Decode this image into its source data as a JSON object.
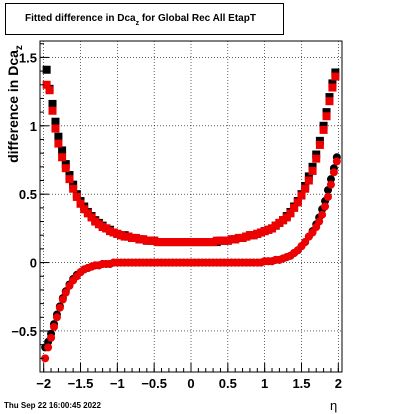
{
  "title": {
    "main": "Fitted difference in Dca",
    "sub": "z",
    "rest": " for Global Rec All EtapT"
  },
  "ylabel": {
    "main": "difference in Dca",
    "sub": "z"
  },
  "xlabel": "η",
  "timestamp": "Thu Sep 22 16:00:45 2022",
  "chart_data": {
    "type": "scatter",
    "xlim": [
      -2.05,
      2.05
    ],
    "ylim": [
      -0.8,
      1.62
    ],
    "grid": true,
    "xticks": [
      {
        "v": -2,
        "label": "−2"
      },
      {
        "v": -1.5,
        "label": "−1.5"
      },
      {
        "v": -1,
        "label": "−1"
      },
      {
        "v": -0.5,
        "label": "−0.5"
      },
      {
        "v": 0,
        "label": "0"
      },
      {
        "v": 0.5,
        "label": "0.5"
      },
      {
        "v": 1,
        "label": "1"
      },
      {
        "v": 1.5,
        "label": "1.5"
      },
      {
        "v": 2,
        "label": "2"
      }
    ],
    "yticks": [
      {
        "v": -0.5,
        "label": "−0.5"
      },
      {
        "v": 0,
        "label": "0"
      },
      {
        "v": 0.5,
        "label": "0.5"
      },
      {
        "v": 1,
        "label": "1"
      },
      {
        "v": 1.5,
        "label": "1.5"
      }
    ],
    "series": [
      {
        "marker": "square",
        "color": "#000000",
        "x": [
          -1.96,
          -1.92,
          -1.88,
          -1.84,
          -1.8,
          -1.75,
          -1.7,
          -1.65,
          -1.6,
          -1.55,
          -1.5,
          -1.45,
          -1.4,
          -1.35,
          -1.3,
          -1.25,
          -1.2,
          -1.15,
          -1.1,
          -1.05,
          -1.0,
          -0.95,
          -0.9,
          -0.85,
          -0.8,
          -0.75,
          -0.7,
          -0.65,
          -0.6,
          -0.55,
          -0.5,
          -0.45,
          -0.4,
          -0.35,
          -0.3,
          -0.25,
          -0.2,
          -0.15,
          -0.1,
          -0.05,
          0.0,
          0.05,
          0.1,
          0.15,
          0.2,
          0.25,
          0.3,
          0.35,
          0.4,
          0.45,
          0.5,
          0.55,
          0.6,
          0.65,
          0.7,
          0.75,
          0.8,
          0.85,
          0.9,
          0.95,
          1.0,
          1.05,
          1.1,
          1.15,
          1.2,
          1.25,
          1.3,
          1.35,
          1.4,
          1.45,
          1.5,
          1.55,
          1.6,
          1.65,
          1.7,
          1.75,
          1.8,
          1.84,
          1.88,
          1.92,
          1.96
        ],
        "y": [
          1.41,
          1.27,
          1.16,
          1.03,
          0.92,
          0.82,
          0.72,
          0.64,
          0.57,
          0.5,
          0.45,
          0.41,
          0.37,
          0.34,
          0.31,
          0.29,
          0.27,
          0.25,
          0.24,
          0.22,
          0.21,
          0.2,
          0.2,
          0.19,
          0.18,
          0.18,
          0.17,
          0.17,
          0.16,
          0.16,
          0.16,
          0.15,
          0.15,
          0.15,
          0.15,
          0.15,
          0.15,
          0.15,
          0.15,
          0.15,
          0.15,
          0.15,
          0.15,
          0.15,
          0.15,
          0.15,
          0.15,
          0.15,
          0.16,
          0.16,
          0.16,
          0.17,
          0.17,
          0.18,
          0.18,
          0.19,
          0.2,
          0.2,
          0.21,
          0.22,
          0.23,
          0.24,
          0.25,
          0.27,
          0.29,
          0.31,
          0.34,
          0.37,
          0.41,
          0.45,
          0.5,
          0.56,
          0.63,
          0.7,
          0.79,
          0.89,
          1.0,
          1.1,
          1.21,
          1.31,
          1.39
        ]
      },
      {
        "marker": "square",
        "color": "#ee0000",
        "x": [
          -1.96,
          -1.92,
          -1.88,
          -1.84,
          -1.8,
          -1.75,
          -1.7,
          -1.65,
          -1.6,
          -1.55,
          -1.5,
          -1.45,
          -1.4,
          -1.35,
          -1.3,
          -1.25,
          -1.2,
          -1.15,
          -1.1,
          -1.05,
          -1.0,
          -0.95,
          -0.9,
          -0.85,
          -0.8,
          -0.75,
          -0.7,
          -0.65,
          -0.6,
          -0.55,
          -0.5,
          -0.45,
          -0.4,
          -0.35,
          -0.3,
          -0.25,
          -0.2,
          -0.15,
          -0.1,
          -0.05,
          0.0,
          0.05,
          0.1,
          0.15,
          0.2,
          0.25,
          0.3,
          0.35,
          0.4,
          0.45,
          0.5,
          0.55,
          0.6,
          0.65,
          0.7,
          0.75,
          0.8,
          0.85,
          0.9,
          0.95,
          1.0,
          1.05,
          1.1,
          1.15,
          1.2,
          1.25,
          1.3,
          1.35,
          1.4,
          1.45,
          1.5,
          1.55,
          1.6,
          1.65,
          1.7,
          1.75,
          1.8,
          1.84,
          1.88,
          1.92,
          1.96
        ],
        "y": [
          1.3,
          1.26,
          1.11,
          0.98,
          0.87,
          0.77,
          0.69,
          0.61,
          0.54,
          0.48,
          0.43,
          0.39,
          0.36,
          0.33,
          0.3,
          0.28,
          0.26,
          0.25,
          0.23,
          0.22,
          0.21,
          0.2,
          0.19,
          0.19,
          0.18,
          0.18,
          0.17,
          0.17,
          0.16,
          0.16,
          0.16,
          0.15,
          0.15,
          0.15,
          0.15,
          0.15,
          0.15,
          0.15,
          0.15,
          0.15,
          0.15,
          0.15,
          0.15,
          0.15,
          0.15,
          0.15,
          0.15,
          0.16,
          0.16,
          0.16,
          0.16,
          0.17,
          0.17,
          0.18,
          0.18,
          0.19,
          0.2,
          0.2,
          0.21,
          0.22,
          0.23,
          0.24,
          0.25,
          0.27,
          0.29,
          0.31,
          0.33,
          0.36,
          0.4,
          0.44,
          0.49,
          0.54,
          0.6,
          0.67,
          0.76,
          0.86,
          0.97,
          1.07,
          1.18,
          1.28,
          1.36
        ]
      },
      {
        "marker": "circle",
        "color": "#000000",
        "x": [
          -1.98,
          -1.94,
          -1.9,
          -1.86,
          -1.82,
          -1.78,
          -1.74,
          -1.7,
          -1.65,
          -1.6,
          -1.55,
          -1.5,
          -1.45,
          -1.4,
          -1.35,
          -1.3,
          -1.25,
          -1.2,
          -1.15,
          -1.1,
          -1.05,
          -1.0,
          -0.95,
          -0.9,
          -0.85,
          -0.8,
          -0.75,
          -0.7,
          -0.65,
          -0.6,
          -0.55,
          -0.5,
          -0.45,
          -0.4,
          -0.35,
          -0.3,
          -0.25,
          -0.2,
          -0.15,
          -0.1,
          -0.05,
          0.0,
          0.05,
          0.1,
          0.15,
          0.2,
          0.25,
          0.3,
          0.35,
          0.4,
          0.45,
          0.5,
          0.55,
          0.6,
          0.65,
          0.7,
          0.75,
          0.8,
          0.85,
          0.9,
          0.95,
          1.0,
          1.05,
          1.1,
          1.15,
          1.2,
          1.25,
          1.3,
          1.35,
          1.4,
          1.45,
          1.5,
          1.55,
          1.6,
          1.65,
          1.7,
          1.74,
          1.78,
          1.82,
          1.86,
          1.9,
          1.94,
          1.98
        ],
        "y": [
          -0.62,
          -0.58,
          -0.52,
          -0.45,
          -0.38,
          -0.32,
          -0.26,
          -0.21,
          -0.16,
          -0.12,
          -0.09,
          -0.07,
          -0.05,
          -0.04,
          -0.03,
          -0.02,
          -0.02,
          -0.01,
          -0.01,
          -0.01,
          0.0,
          0.0,
          0.0,
          0.0,
          0.0,
          0.0,
          0.0,
          0.0,
          0.0,
          0.0,
          0.0,
          0.0,
          0.0,
          0.0,
          0.0,
          0.0,
          0.0,
          0.0,
          0.0,
          0.0,
          0.0,
          0.0,
          0.0,
          0.0,
          0.0,
          0.0,
          0.0,
          0.0,
          0.0,
          0.0,
          0.0,
          0.0,
          0.0,
          0.0,
          0.0,
          0.0,
          0.0,
          0.0,
          0.0,
          0.0,
          0.0,
          0.01,
          0.01,
          0.01,
          0.02,
          0.02,
          0.03,
          0.04,
          0.05,
          0.07,
          0.09,
          0.12,
          0.15,
          0.19,
          0.23,
          0.28,
          0.33,
          0.39,
          0.45,
          0.53,
          0.61,
          0.69,
          0.77
        ]
      },
      {
        "marker": "circle",
        "color": "#ee0000",
        "x": [
          -1.98,
          -1.94,
          -1.9,
          -1.86,
          -1.82,
          -1.78,
          -1.74,
          -1.7,
          -1.65,
          -1.6,
          -1.55,
          -1.5,
          -1.45,
          -1.4,
          -1.35,
          -1.3,
          -1.25,
          -1.2,
          -1.15,
          -1.1,
          -1.05,
          -1.0,
          -0.95,
          -0.9,
          -0.85,
          -0.8,
          -0.75,
          -0.7,
          -0.65,
          -0.6,
          -0.55,
          -0.5,
          -0.45,
          -0.4,
          -0.35,
          -0.3,
          -0.25,
          -0.2,
          -0.15,
          -0.1,
          -0.05,
          0.0,
          0.05,
          0.1,
          0.15,
          0.2,
          0.25,
          0.3,
          0.35,
          0.4,
          0.45,
          0.5,
          0.55,
          0.6,
          0.65,
          0.7,
          0.75,
          0.8,
          0.85,
          0.9,
          0.95,
          1.0,
          1.05,
          1.1,
          1.15,
          1.2,
          1.25,
          1.3,
          1.35,
          1.4,
          1.45,
          1.5,
          1.55,
          1.6,
          1.65,
          1.7,
          1.74,
          1.78,
          1.82,
          1.86,
          1.9,
          1.94,
          1.98
        ],
        "y": [
          -0.7,
          -0.62,
          -0.55,
          -0.47,
          -0.4,
          -0.33,
          -0.27,
          -0.22,
          -0.17,
          -0.13,
          -0.1,
          -0.07,
          -0.05,
          -0.04,
          -0.03,
          -0.02,
          -0.02,
          -0.01,
          -0.01,
          -0.01,
          0.0,
          0.0,
          0.0,
          0.0,
          0.0,
          0.0,
          0.0,
          0.0,
          0.0,
          0.0,
          0.0,
          0.0,
          0.0,
          0.0,
          0.0,
          0.0,
          0.0,
          0.0,
          0.0,
          0.0,
          0.0,
          0.0,
          0.0,
          0.0,
          0.0,
          0.0,
          0.0,
          0.0,
          0.0,
          0.0,
          0.0,
          0.0,
          0.0,
          0.0,
          0.0,
          0.0,
          0.0,
          0.0,
          0.0,
          0.0,
          0.0,
          0.01,
          0.01,
          0.01,
          0.02,
          0.02,
          0.03,
          0.04,
          0.05,
          0.07,
          0.09,
          0.12,
          0.15,
          0.19,
          0.22,
          0.26,
          0.3,
          0.35,
          0.41,
          0.48,
          0.57,
          0.66,
          0.74
        ]
      }
    ]
  }
}
